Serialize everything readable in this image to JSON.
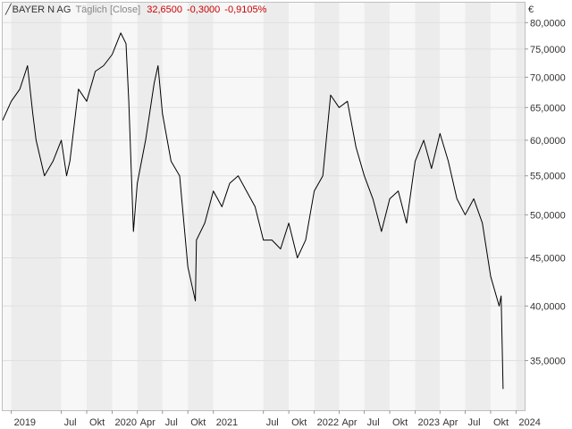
{
  "header": {
    "instrument": "BAYER N AG",
    "mode": "Täglich [Close]",
    "last": "32,6500",
    "change": "-0,3000",
    "change_pct": "-0,9105%"
  },
  "colors": {
    "negative": "#cc0000",
    "line": "#000000",
    "band_light": "#f7f7f7",
    "band_dark": "#ececec",
    "grid": "#e0e0e0"
  },
  "chart_data": {
    "type": "line",
    "title": "BAYER N AG",
    "xlabel": "",
    "ylabel": "",
    "currency": "€",
    "scale": "log",
    "grid": true,
    "y_ticks": [
      {
        "value": 35,
        "label": "35,0000"
      },
      {
        "value": 40,
        "label": "40,0000"
      },
      {
        "value": 45,
        "label": "45,0000"
      },
      {
        "value": 50,
        "label": "50,0000"
      },
      {
        "value": 55,
        "label": "55,0000"
      },
      {
        "value": 60,
        "label": "60,0000"
      },
      {
        "value": 65,
        "label": "65,0000"
      },
      {
        "value": 70,
        "label": "70,0000"
      },
      {
        "value": 75,
        "label": "75,0000"
      },
      {
        "value": 80,
        "label": "80,0000"
      }
    ],
    "x_ticks": [
      {
        "date": "2019-01",
        "label": "2019"
      },
      {
        "date": "2019-07",
        "label": "Jul"
      },
      {
        "date": "2019-10",
        "label": "Okt"
      },
      {
        "date": "2020-01",
        "label": "2020"
      },
      {
        "date": "2020-04",
        "label": "Apr"
      },
      {
        "date": "2020-07",
        "label": "Jul"
      },
      {
        "date": "2020-10",
        "label": "Okt"
      },
      {
        "date": "2021-01",
        "label": "2021"
      },
      {
        "date": "2021-07",
        "label": "Jul"
      },
      {
        "date": "2021-10",
        "label": "Okt"
      },
      {
        "date": "2022-01",
        "label": "2022"
      },
      {
        "date": "2022-04",
        "label": "Apr"
      },
      {
        "date": "2022-07",
        "label": "Jul"
      },
      {
        "date": "2022-10",
        "label": "Okt"
      },
      {
        "date": "2023-01",
        "label": "2023"
      },
      {
        "date": "2023-04",
        "label": "Apr"
      },
      {
        "date": "2023-07",
        "label": "Jul"
      },
      {
        "date": "2023-10",
        "label": "Okt"
      },
      {
        "date": "2024-01",
        "label": "2024"
      }
    ],
    "x_range": [
      "2018-12",
      "2024-02"
    ],
    "y_range": [
      31,
      84
    ],
    "series": [
      {
        "values": [
          {
            "x": "2018-12",
            "y": 63
          },
          {
            "x": "2019-01",
            "y": 66
          },
          {
            "x": "2019-02",
            "y": 68
          },
          {
            "x": "2019-03",
            "y": 72
          },
          {
            "x": "2019-03-20",
            "y": 64
          },
          {
            "x": "2019-04",
            "y": 60
          },
          {
            "x": "2019-05",
            "y": 55
          },
          {
            "x": "2019-06",
            "y": 57
          },
          {
            "x": "2019-07",
            "y": 60
          },
          {
            "x": "2019-07-20",
            "y": 55
          },
          {
            "x": "2019-08",
            "y": 57
          },
          {
            "x": "2019-09",
            "y": 68
          },
          {
            "x": "2019-10",
            "y": 66
          },
          {
            "x": "2019-11",
            "y": 71
          },
          {
            "x": "2019-12",
            "y": 72
          },
          {
            "x": "2020-01",
            "y": 74
          },
          {
            "x": "2020-02",
            "y": 78
          },
          {
            "x": "2020-02-20",
            "y": 76
          },
          {
            "x": "2020-03",
            "y": 66
          },
          {
            "x": "2020-03-18",
            "y": 48
          },
          {
            "x": "2020-04",
            "y": 54
          },
          {
            "x": "2020-05",
            "y": 60
          },
          {
            "x": "2020-06",
            "y": 69
          },
          {
            "x": "2020-06-15",
            "y": 72
          },
          {
            "x": "2020-07",
            "y": 64
          },
          {
            "x": "2020-08",
            "y": 57
          },
          {
            "x": "2020-09",
            "y": 55
          },
          {
            "x": "2020-10",
            "y": 44
          },
          {
            "x": "2020-10-28",
            "y": 40.5
          },
          {
            "x": "2020-11",
            "y": 47
          },
          {
            "x": "2020-12",
            "y": 49
          },
          {
            "x": "2021-01",
            "y": 53
          },
          {
            "x": "2021-02",
            "y": 51
          },
          {
            "x": "2021-03",
            "y": 54
          },
          {
            "x": "2021-04",
            "y": 55
          },
          {
            "x": "2021-05",
            "y": 53
          },
          {
            "x": "2021-06",
            "y": 51
          },
          {
            "x": "2021-07",
            "y": 47
          },
          {
            "x": "2021-08",
            "y": 47
          },
          {
            "x": "2021-09",
            "y": 46
          },
          {
            "x": "2021-10",
            "y": 49
          },
          {
            "x": "2021-11",
            "y": 45
          },
          {
            "x": "2021-12",
            "y": 47
          },
          {
            "x": "2022-01",
            "y": 53
          },
          {
            "x": "2022-02",
            "y": 55
          },
          {
            "x": "2022-03",
            "y": 67
          },
          {
            "x": "2022-04",
            "y": 65
          },
          {
            "x": "2022-05",
            "y": 66
          },
          {
            "x": "2022-06",
            "y": 59
          },
          {
            "x": "2022-07",
            "y": 55
          },
          {
            "x": "2022-08",
            "y": 52
          },
          {
            "x": "2022-09",
            "y": 48
          },
          {
            "x": "2022-10",
            "y": 52
          },
          {
            "x": "2022-11",
            "y": 53
          },
          {
            "x": "2022-12",
            "y": 49
          },
          {
            "x": "2023-01",
            "y": 57
          },
          {
            "x": "2023-02",
            "y": 60
          },
          {
            "x": "2023-03",
            "y": 56
          },
          {
            "x": "2023-04",
            "y": 61
          },
          {
            "x": "2023-05",
            "y": 57
          },
          {
            "x": "2023-06",
            "y": 52
          },
          {
            "x": "2023-07",
            "y": 50
          },
          {
            "x": "2023-08",
            "y": 52
          },
          {
            "x": "2023-09",
            "y": 49
          },
          {
            "x": "2023-10",
            "y": 43
          },
          {
            "x": "2023-11",
            "y": 40
          },
          {
            "x": "2023-11-08",
            "y": 41
          },
          {
            "x": "2023-11-15",
            "y": 32.65
          }
        ]
      }
    ]
  }
}
